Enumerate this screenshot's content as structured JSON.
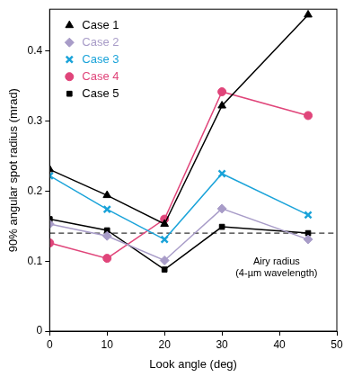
{
  "chart_data": {
    "type": "line",
    "x_label": "Look angle (deg)",
    "y_label": "90% angular spot radius (mrad)",
    "x": [
      0,
      10,
      20,
      30,
      45
    ],
    "series": [
      {
        "name": "Case 1",
        "color": "#000000",
        "marker": "triangle",
        "values": [
          0.231,
          0.194,
          0.153,
          0.322,
          0.452
        ]
      },
      {
        "name": "Case 2",
        "color": "#a89cc8",
        "marker": "diamond",
        "values": [
          0.153,
          0.136,
          0.101,
          0.175,
          0.131
        ]
      },
      {
        "name": "Case 3",
        "color": "#1aa3d9",
        "marker": "x",
        "values": [
          0.222,
          0.174,
          0.131,
          0.225,
          0.166
        ]
      },
      {
        "name": "Case 4",
        "color": "#e0457a",
        "marker": "circle",
        "values": [
          0.126,
          0.104,
          0.16,
          0.342,
          0.308
        ]
      },
      {
        "name": "Case 5",
        "color": "#000000",
        "marker": "square",
        "values": [
          0.16,
          0.144,
          0.088,
          0.149,
          0.14
        ]
      }
    ],
    "annotation": {
      "y": 0.14,
      "text": [
        "Airy radius",
        "(4-µm wavelength)"
      ],
      "line_style": "dashed"
    },
    "xlim": [
      0,
      50
    ],
    "xticks": [
      0,
      10,
      20,
      30,
      40,
      50
    ],
    "ylim": [
      0,
      0.46
    ],
    "yticks": [
      0,
      0.1,
      0.2,
      0.3,
      0.4
    ],
    "grid": false,
    "legend": "upper left"
  }
}
